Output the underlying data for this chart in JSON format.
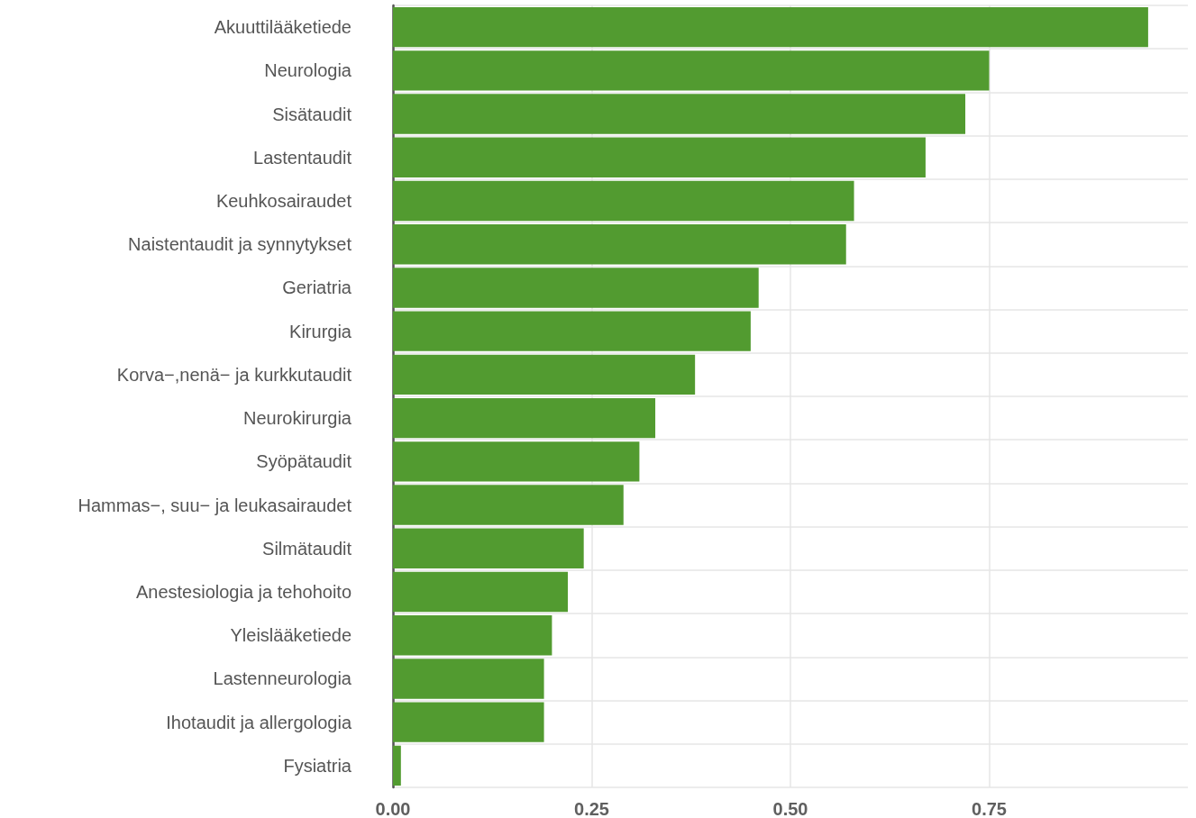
{
  "chart_data": {
    "type": "bar",
    "orientation": "horizontal",
    "categories": [
      "Akuuttilääketiede",
      "Neurologia",
      "Sisätaudit",
      "Lastentaudit",
      "Keuhkosairaudet",
      "Naistentaudit ja synnytykset",
      "Geriatria",
      "Kirurgia",
      "Korva−,nenä− ja kurkkutaudit",
      "Neurokirurgia",
      "Syöpätaudit",
      "Hammas−, suu− ja leukasairaudet",
      "Silmätaudit",
      "Anestesiologia ja tehohoito",
      "Yleislääketiede",
      "Lastenneurologia",
      "Ihotaudit ja allergologia",
      "Fysiatria"
    ],
    "values": [
      0.95,
      0.75,
      0.72,
      0.67,
      0.58,
      0.57,
      0.46,
      0.45,
      0.38,
      0.33,
      0.31,
      0.29,
      0.24,
      0.22,
      0.2,
      0.19,
      0.19,
      0.01
    ],
    "color": "#529b30",
    "xlim": [
      0,
      1.0
    ],
    "xticks": [
      {
        "value": 0,
        "label": "0.00"
      },
      {
        "value": 0.25,
        "label": "0.25"
      },
      {
        "value": 0.5,
        "label": "0.50"
      },
      {
        "value": 0.75,
        "label": "0.75"
      }
    ],
    "grid": true
  }
}
